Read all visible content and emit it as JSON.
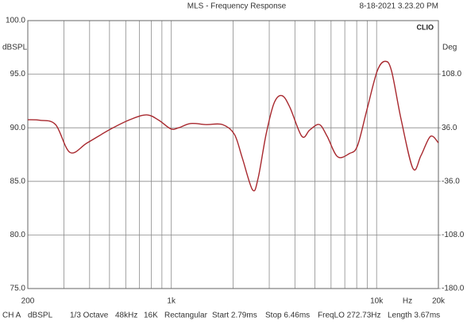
{
  "chart_data": {
    "type": "line",
    "title": "MLS - Frequency Response",
    "timestamp": "8-18-2021 3.23.20 PM",
    "brand": "CLIO",
    "y_label": "dBSPL",
    "y2_label": "Deg",
    "x_unit_label": "Hz",
    "x_log": true,
    "grid": true,
    "xlim": [
      200,
      20000
    ],
    "xticks": [
      200,
      {
        "value": 1000,
        "label": "1k"
      },
      {
        "value": 10000,
        "label": "10k"
      },
      {
        "value": 20000,
        "label": "20k"
      }
    ],
    "x_minor_ticks": [
      300,
      400,
      500,
      600,
      700,
      800,
      900,
      2000,
      3000,
      4000,
      5000,
      6000,
      7000,
      8000,
      9000
    ],
    "ylim": [
      75,
      100
    ],
    "yticks": [
      {
        "value": 100,
        "label": "100.0"
      },
      {
        "value": 95,
        "label": "95.0"
      },
      {
        "value": 90,
        "label": "90.0"
      },
      {
        "value": 85,
        "label": "85.0"
      },
      {
        "value": 80,
        "label": "80.0"
      },
      {
        "value": 75,
        "label": "75.0"
      }
    ],
    "y2lim": [
      -180,
      180
    ],
    "y2ticks": [
      {
        "value": 108,
        "label": "108.0"
      },
      {
        "value": 36,
        "label": "36.0"
      },
      {
        "value": -36,
        "label": "-36.0"
      },
      {
        "value": -108,
        "label": "-108.0"
      },
      {
        "value": -180,
        "label": "-180.0"
      }
    ],
    "x": [
      200,
      229,
      273,
      321,
      390,
      509,
      637,
      761,
      870,
      994,
      1086,
      1242,
      1483,
      1774,
      2028,
      2216,
      2489,
      2648,
      2896,
      3166,
      3460,
      3783,
      4325,
      4726,
      5260,
      5744,
      6454,
      7378,
      8061,
      8975,
      10071,
      11015,
      11826,
      13157,
      15039,
      16445,
      18290,
      20000
    ],
    "series": [
      {
        "name": "dBSPL",
        "color": "#a8282e",
        "values": [
          90.75,
          90.7,
          90.3,
          87.7,
          88.6,
          89.9,
          90.8,
          91.2,
          90.7,
          89.9,
          90.0,
          90.4,
          90.3,
          90.3,
          89.4,
          87.2,
          84.2,
          85.3,
          89.4,
          92.3,
          93.0,
          91.9,
          89.2,
          89.8,
          90.3,
          89.2,
          87.3,
          87.6,
          88.3,
          91.7,
          95.3,
          96.2,
          95.3,
          90.8,
          86.2,
          87.4,
          89.2,
          88.6
        ]
      }
    ],
    "footer": [
      "CH A",
      "dBSPL",
      "1/3 Octave",
      "48kHz",
      "16K",
      "Rectangular",
      "Start 2.79ms",
      "Stop 6.46ms",
      "FreqLO 272.73Hz",
      "Length 3.67ms"
    ]
  }
}
